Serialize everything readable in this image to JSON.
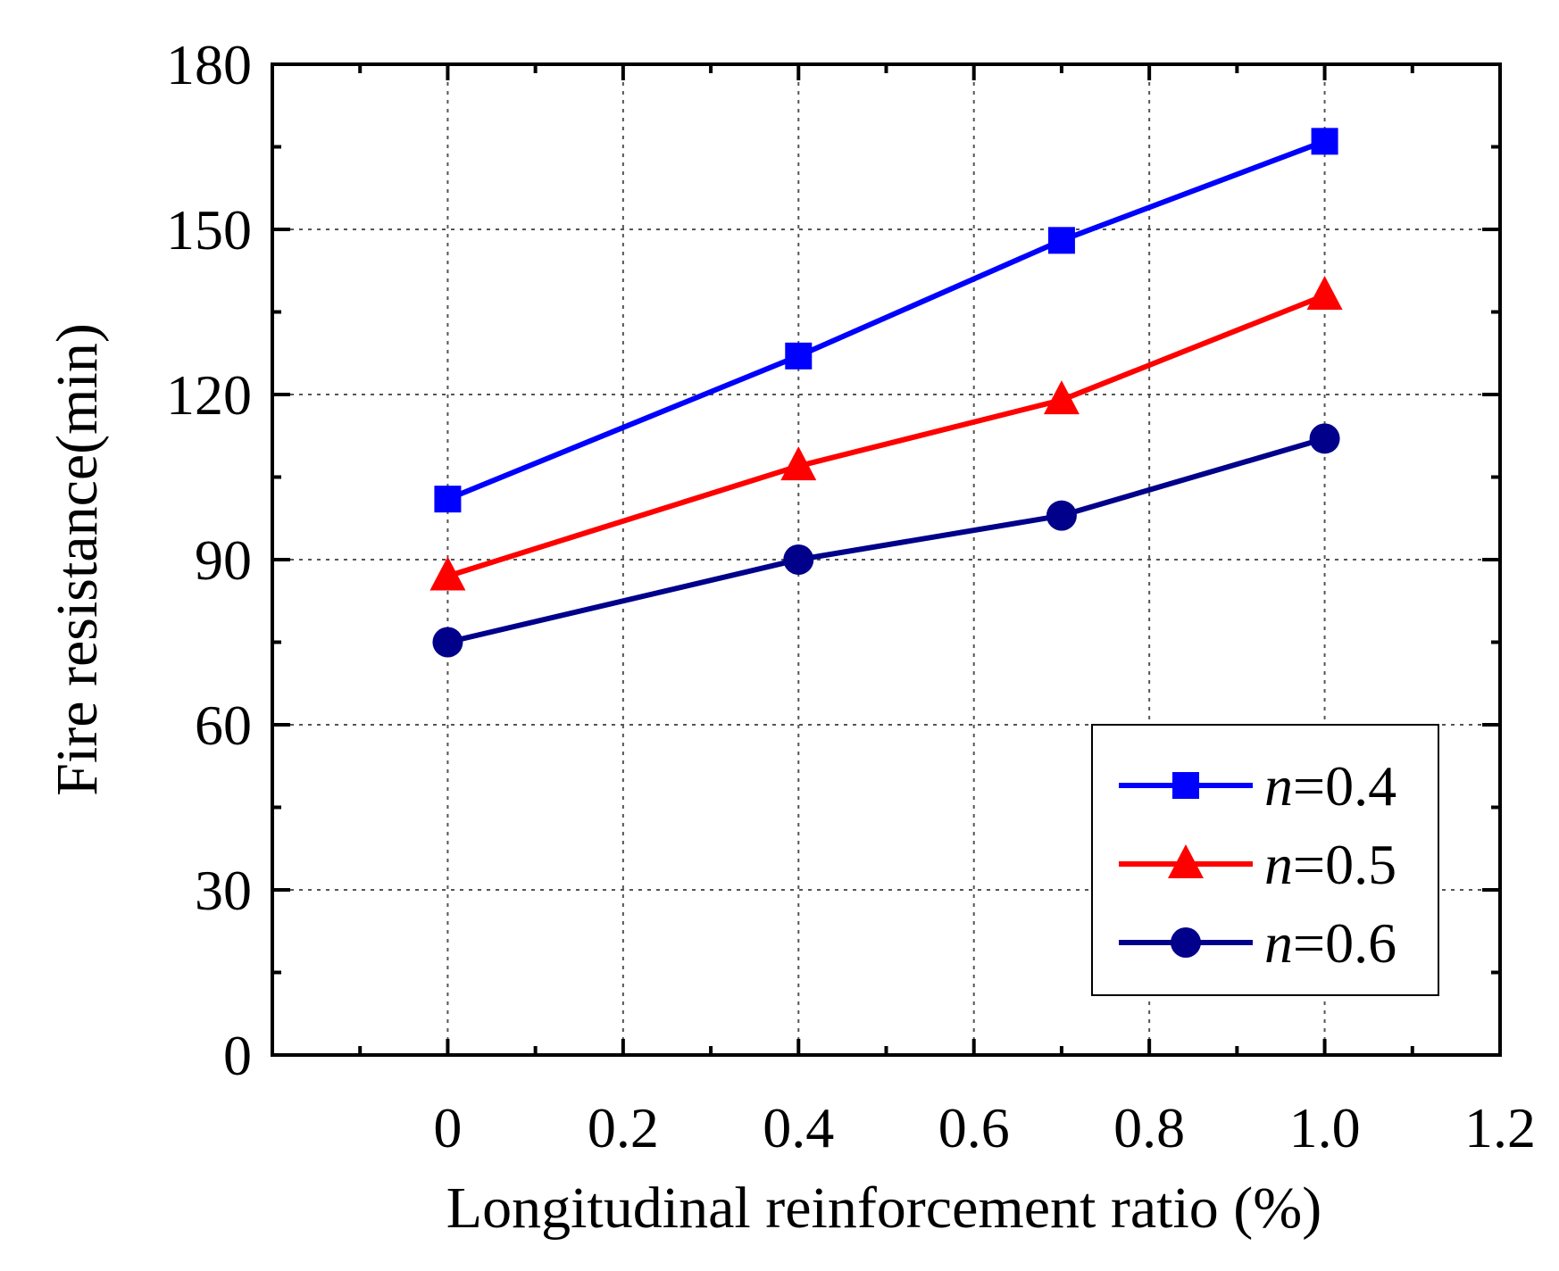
{
  "chart_data": {
    "type": "line",
    "xlabel": "Longitudinal reinforcement ratio (%)",
    "ylabel": "Fire resistance(min)",
    "xlim": [
      -0.2,
      1.2
    ],
    "ylim": [
      0,
      180
    ],
    "grid": true,
    "legend_position": "bottom-right",
    "x_ticks": [
      {
        "value": 0,
        "label": "0"
      },
      {
        "value": 0.2,
        "label": "0.2"
      },
      {
        "value": 0.4,
        "label": "0.4"
      },
      {
        "value": 0.6,
        "label": "0.6"
      },
      {
        "value": 0.8,
        "label": "0.8"
      },
      {
        "value": 1.0,
        "label": "1.0"
      },
      {
        "value": 1.2,
        "label": "1.2"
      }
    ],
    "y_ticks": [
      {
        "value": 0,
        "label": "0"
      },
      {
        "value": 30,
        "label": "30"
      },
      {
        "value": 60,
        "label": "60"
      },
      {
        "value": 90,
        "label": "90"
      },
      {
        "value": 120,
        "label": "120"
      },
      {
        "value": 150,
        "label": "150"
      },
      {
        "value": 180,
        "label": "180"
      }
    ],
    "x": [
      0,
      0.4,
      0.7,
      1.0
    ],
    "series": [
      {
        "name": "n=0.4",
        "name_var": "n",
        "name_val": "=0.4",
        "marker": "square",
        "color": "#0000ff",
        "values": [
          101,
          127,
          148,
          166
        ]
      },
      {
        "name": "n=0.5",
        "name_var": "n",
        "name_val": "=0.5",
        "marker": "triangle",
        "color": "#ff0000",
        "values": [
          87,
          107,
          119,
          138
        ]
      },
      {
        "name": "n=0.6",
        "name_var": "n",
        "name_val": "=0.6",
        "marker": "circle",
        "color": "#00008b",
        "values": [
          75,
          90,
          98,
          112
        ]
      }
    ]
  }
}
